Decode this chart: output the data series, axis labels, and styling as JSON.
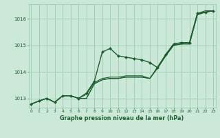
{
  "title": "Graphe pression niveau de la mer (hPa)",
  "bg_color": "#cce8d8",
  "grid_color": "#99ccb3",
  "line_color": "#1a5c2a",
  "xlim": [
    -0.3,
    23.3
  ],
  "ylim": [
    1012.65,
    1016.55
  ],
  "yticks": [
    1013,
    1014,
    1015,
    1016
  ],
  "xticks": [
    0,
    1,
    2,
    3,
    4,
    5,
    6,
    7,
    8,
    9,
    10,
    11,
    12,
    13,
    14,
    15,
    16,
    17,
    18,
    19,
    20,
    21,
    22,
    23
  ],
  "series": [
    [
      1012.78,
      1012.9,
      1013.0,
      1012.85,
      1013.1,
      1013.1,
      1013.0,
      1013.0,
      1013.55,
      1013.7,
      1013.75,
      1013.75,
      1013.8,
      1013.8,
      1013.8,
      1013.75,
      1014.15,
      1014.6,
      1015.0,
      1015.05,
      1015.05,
      1016.15,
      1016.25,
      1016.3
    ],
    [
      1012.78,
      1012.9,
      1013.0,
      1012.85,
      1013.1,
      1013.1,
      1013.0,
      1013.0,
      1013.55,
      1013.7,
      1013.75,
      1013.75,
      1013.8,
      1013.8,
      1013.8,
      1013.75,
      1014.15,
      1014.6,
      1015.0,
      1015.05,
      1015.05,
      1016.15,
      1016.25,
      1016.3
    ],
    [
      1012.78,
      1012.9,
      1013.0,
      1012.85,
      1013.1,
      1013.1,
      1013.0,
      1013.15,
      1013.6,
      1013.75,
      1013.8,
      1013.8,
      1013.85,
      1013.85,
      1013.85,
      1013.75,
      1014.2,
      1014.65,
      1015.05,
      1015.1,
      1015.1,
      1016.2,
      1016.3,
      1016.3
    ],
    [
      1012.78,
      1012.9,
      1013.0,
      1012.85,
      1013.1,
      1013.1,
      1013.0,
      1013.2,
      1013.65,
      1014.75,
      1014.88,
      1014.6,
      1014.55,
      1014.5,
      1014.45,
      1014.35,
      1014.15,
      1014.65,
      1015.05,
      1015.1,
      1015.1,
      1016.2,
      1016.25,
      1016.3
    ]
  ],
  "linewidths": [
    0.8,
    0.8,
    0.8,
    1.0
  ],
  "markers": [
    false,
    false,
    false,
    true
  ],
  "marker_size": 2.2
}
